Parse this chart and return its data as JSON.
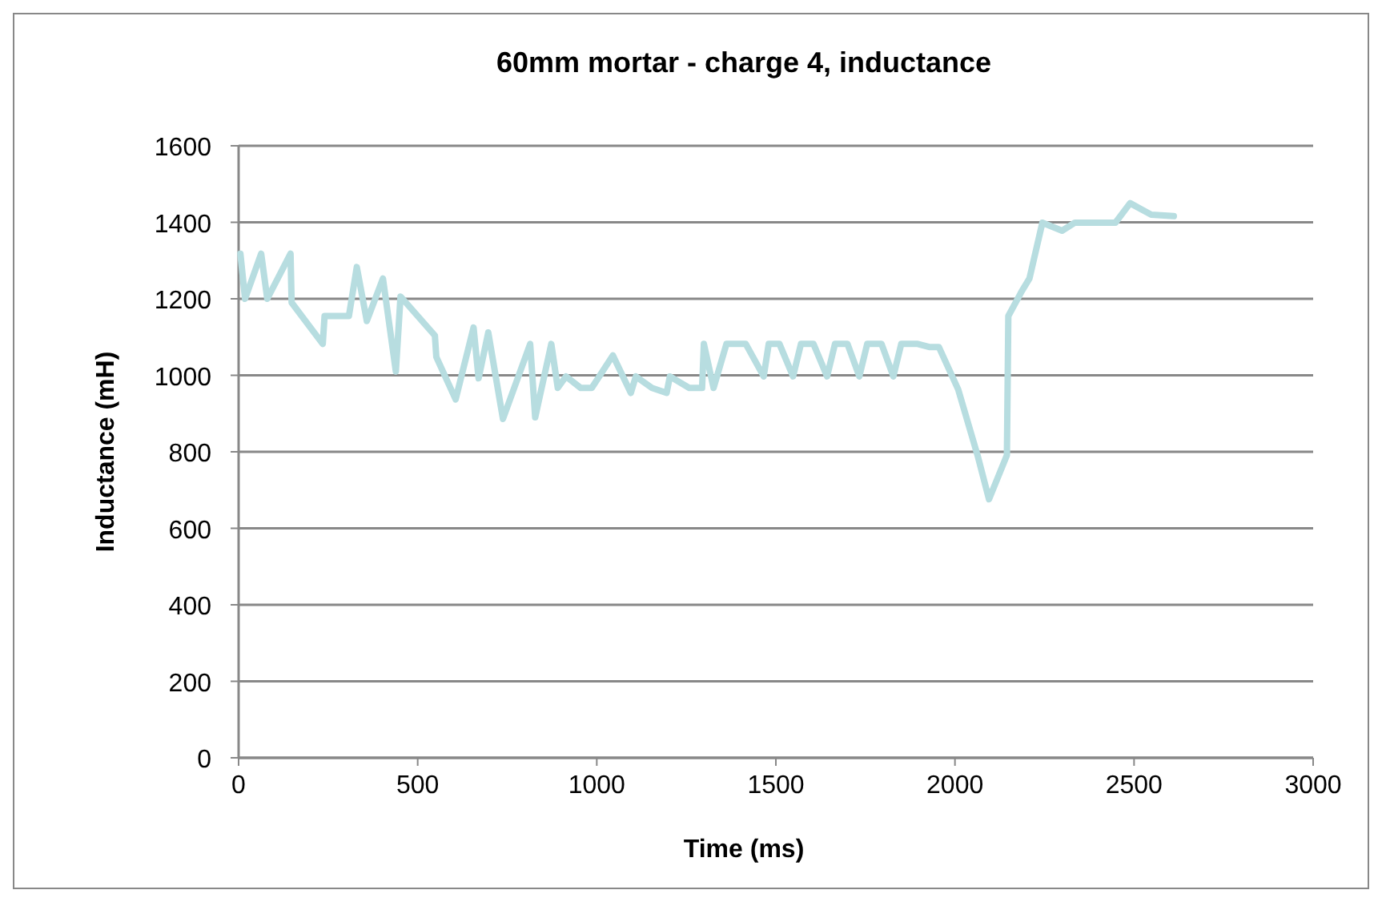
{
  "chart_data": {
    "type": "line",
    "title": "60mm mortar - charge 4, inductance",
    "xlabel": "Time (ms)",
    "ylabel": "Inductance (mH)",
    "xlim": [
      0,
      3000
    ],
    "xticks": [
      0,
      500,
      1000,
      1500,
      2000,
      2500,
      3000
    ],
    "ylim": [
      0,
      1600
    ],
    "yticks": [
      0,
      200,
      400,
      600,
      800,
      1000,
      1200,
      1400,
      1600
    ],
    "grid": "y",
    "marker": "none",
    "line_style": "solid",
    "series": [
      {
        "color": "#b7dde0",
        "x": [
          5,
          18,
          63,
          80,
          145,
          148,
          235,
          240,
          262,
          308,
          330,
          358,
          403,
          439,
          452,
          548,
          552,
          606,
          656,
          670,
          697,
          738,
          814,
          828,
          873,
          891,
          914,
          955,
          986,
          1045,
          1095,
          1109,
          1154,
          1195,
          1204,
          1258,
          1294,
          1299,
          1326,
          1362,
          1416,
          1466,
          1480,
          1510,
          1548,
          1570,
          1605,
          1643,
          1665,
          1700,
          1733,
          1755,
          1795,
          1828,
          1850,
          1896,
          1928,
          1955,
          2009,
          2063,
          2095,
          2145,
          2149,
          2186,
          2208,
          2244,
          2299,
          2335,
          2448,
          2489,
          2548,
          2611
        ],
        "values": [
          1318,
          1200,
          1318,
          1200,
          1318,
          1190,
          1082,
          1155,
          1155,
          1155,
          1283,
          1142,
          1253,
          1010,
          1206,
          1104,
          1048,
          937,
          1125,
          992,
          1112,
          886,
          1082,
          890,
          1082,
          967,
          997,
          967,
          967,
          1052,
          954,
          997,
          967,
          954,
          997,
          967,
          967,
          1082,
          967,
          1082,
          1082,
          997,
          1082,
          1082,
          997,
          1082,
          1082,
          997,
          1082,
          1082,
          997,
          1082,
          1082,
          997,
          1082,
          1082,
          1074,
          1074,
          963,
          791,
          676,
          791,
          1155,
          1219,
          1253,
          1399,
          1378,
          1399,
          1399,
          1450,
          1420,
          1416
        ]
      }
    ]
  }
}
